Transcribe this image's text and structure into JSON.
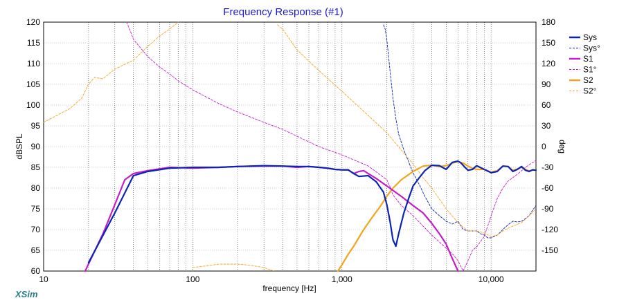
{
  "chart_data": {
    "type": "line",
    "title": "Frequency Response (#1)",
    "xlabel": "frequency [Hz]",
    "ylabel": "dBSPL",
    "y2label": "deg",
    "x_scale": "log",
    "xlim": [
      10,
      20000
    ],
    "ylim": [
      60,
      120
    ],
    "y2lim": [
      -180,
      180
    ],
    "x_ticks": [
      {
        "value": 10,
        "label": "10"
      },
      {
        "value": 100,
        "label": "100"
      },
      {
        "value": 1000,
        "label": "1,000"
      },
      {
        "value": 10000,
        "label": "10,000"
      }
    ],
    "y_ticks": [
      "60",
      "65",
      "70",
      "75",
      "80",
      "85",
      "90",
      "95",
      "100",
      "105",
      "110",
      "115",
      "120"
    ],
    "y2_ticks": [
      "-150",
      "-120",
      "-90",
      "-60",
      "-30",
      "0",
      "30",
      "60",
      "90",
      "120",
      "150",
      "180"
    ],
    "grid": true,
    "legend_position": "right",
    "brand": "XSim",
    "series": [
      {
        "name": "Sys",
        "axis": "left",
        "style": "solid",
        "color": "#0a24b4",
        "x": [
          20,
          30,
          40,
          50,
          70,
          100,
          150,
          200,
          300,
          400,
          500,
          600,
          700,
          800,
          900,
          1000,
          1100,
          1200,
          1300,
          1500,
          1700,
          1900,
          2000,
          2100,
          2200,
          2300,
          2400,
          2600,
          2800,
          3000,
          3300,
          3600,
          4000,
          4500,
          5000,
          5500,
          6000,
          6300,
          6600,
          7000,
          7500,
          8000,
          9000,
          10000,
          11000,
          12000,
          13000,
          14000,
          15000,
          16000,
          17000,
          18000,
          19000,
          20000
        ],
        "y": [
          62,
          74,
          83,
          84,
          84.8,
          85,
          85,
          85.2,
          85.4,
          85.3,
          85.2,
          85.2,
          85,
          84.8,
          84.5,
          84.4,
          84.4,
          83.5,
          82.8,
          83,
          81.5,
          79,
          76,
          72,
          67.5,
          66,
          69,
          74,
          77.5,
          80.5,
          82.5,
          84.2,
          85.5,
          85.4,
          84.5,
          86.2,
          86.5,
          86,
          85.2,
          84.3,
          84.5,
          85.4,
          84.5,
          83.7,
          84,
          85.3,
          85.2,
          84,
          84.5,
          85.2,
          84.3,
          84,
          84.4,
          84.3
        ]
      },
      {
        "name": "Sys°",
        "axis": "right",
        "style": "dashed",
        "color": "#0a24b4",
        "x": [
          1900,
          1950,
          2000,
          2100,
          2200,
          2300,
          2400,
          2600,
          2800,
          3000,
          3300,
          3600,
          4000,
          4500,
          5000,
          5500,
          6000,
          6500,
          7000,
          7500,
          8000,
          8500,
          9000,
          9500,
          10000,
          11000,
          12000,
          13000,
          14000,
          15000,
          16000,
          17000,
          18000,
          19000,
          20000
        ],
        "y": [
          176,
          170,
          155,
          110,
          70,
          40,
          18,
          -5,
          -22,
          -38,
          -55,
          -72,
          -90,
          -100,
          -108,
          -112,
          -108,
          -120,
          -122,
          -122,
          -122,
          -126,
          -128,
          -132,
          -132,
          -128,
          -120,
          -113,
          -108,
          -109,
          -108,
          -104,
          -100,
          -92,
          -85
        ]
      },
      {
        "name": "S1",
        "axis": "left",
        "style": "solid",
        "color": "#c41cc8",
        "x": [
          19,
          25,
          30,
          35,
          40,
          50,
          70,
          100,
          150,
          200,
          300,
          400,
          500,
          600,
          700,
          800,
          900,
          1000,
          1100,
          1200,
          1300,
          1400,
          1500,
          1700,
          2000,
          2500,
          3000,
          3500,
          4000,
          4500,
          5000,
          5500,
          6000
        ],
        "y": [
          60,
          69,
          76,
          82,
          83.5,
          84.2,
          85,
          84.8,
          85,
          85.2,
          85.3,
          85.3,
          85,
          85.2,
          85,
          84.8,
          84.5,
          84.4,
          84.4,
          83.5,
          84,
          84.2,
          83.5,
          82.3,
          80.5,
          78,
          75.8,
          74,
          71.5,
          69,
          66.5,
          63,
          60
        ]
      },
      {
        "name": "S1°",
        "axis": "right",
        "style": "dashed",
        "color": "#c41cc8",
        "x": [
          36,
          38,
          40,
          50,
          60,
          70,
          80,
          100,
          150,
          200,
          300,
          400,
          500,
          700,
          1000,
          1500,
          2000,
          2100,
          2200,
          2500,
          3000,
          3500,
          4000,
          4500,
          5000,
          5500,
          6000,
          6500,
          7000,
          7500,
          8000,
          9000,
          10000,
          11000,
          12000,
          13000,
          15000,
          17000,
          20000
        ],
        "y": [
          180,
          168,
          155,
          130,
          115,
          105,
          95,
          82,
          62,
          50,
          35,
          25,
          15,
          0,
          -12,
          -28,
          -48,
          -58,
          -70,
          -85,
          -100,
          -115,
          -128,
          -138,
          -147,
          -155,
          -165,
          -180,
          -165,
          -150,
          -145,
          -130,
          -100,
          -75,
          -60,
          -50,
          -40,
          -30,
          -20
        ]
      },
      {
        "name": "S2",
        "axis": "left",
        "style": "solid",
        "color": "#f4a41c",
        "x": [
          940,
          1000,
          1100,
          1200,
          1400,
          1600,
          1800,
          2000,
          2200,
          2500,
          3000,
          3500,
          4000,
          4500,
          5000,
          5500,
          6000,
          6500,
          7000,
          7500,
          8000,
          9000,
          10000,
          11000,
          12000,
          13000,
          14000,
          15000,
          16000,
          17000,
          18000,
          19000,
          20000
        ],
        "y": [
          60,
          61.5,
          64,
          66,
          70,
          73,
          75.5,
          78,
          80,
          82,
          84,
          85.3,
          85.5,
          85.2,
          85.4,
          86,
          86.4,
          86,
          85.3,
          84.8,
          84.5,
          84.5,
          83.8,
          84.2,
          85.3,
          85.2,
          84.3,
          84.6,
          85,
          84.5,
          84.1,
          84.4,
          84.3
        ]
      },
      {
        "name": "S2°",
        "axis": "right",
        "style": "dashed",
        "color": "#f4a41c",
        "x": [
          10,
          15,
          18,
          20,
          22,
          25,
          30,
          40,
          50,
          60,
          70,
          80,
          100,
          150,
          200,
          250,
          300,
          350,
          370,
          400,
          500,
          700,
          1000,
          1500,
          2000,
          2500,
          3000,
          3500,
          4000,
          5000,
          6000,
          7000,
          8000,
          9000,
          10000,
          11000,
          12000,
          14000,
          16000,
          18000,
          20000
        ],
        "y": [
          35,
          55,
          70,
          90,
          100,
          98,
          112,
          125,
          145,
          160,
          170,
          180,
          -175,
          -170,
          -170,
          -172,
          -175,
          -180,
          176,
          170,
          140,
          110,
          80,
          45,
          20,
          -5,
          -25,
          -45,
          -60,
          -90,
          -110,
          -122,
          -122,
          -125,
          -130,
          -128,
          -122,
          -115,
          -110,
          -100,
          -90
        ]
      }
    ]
  }
}
